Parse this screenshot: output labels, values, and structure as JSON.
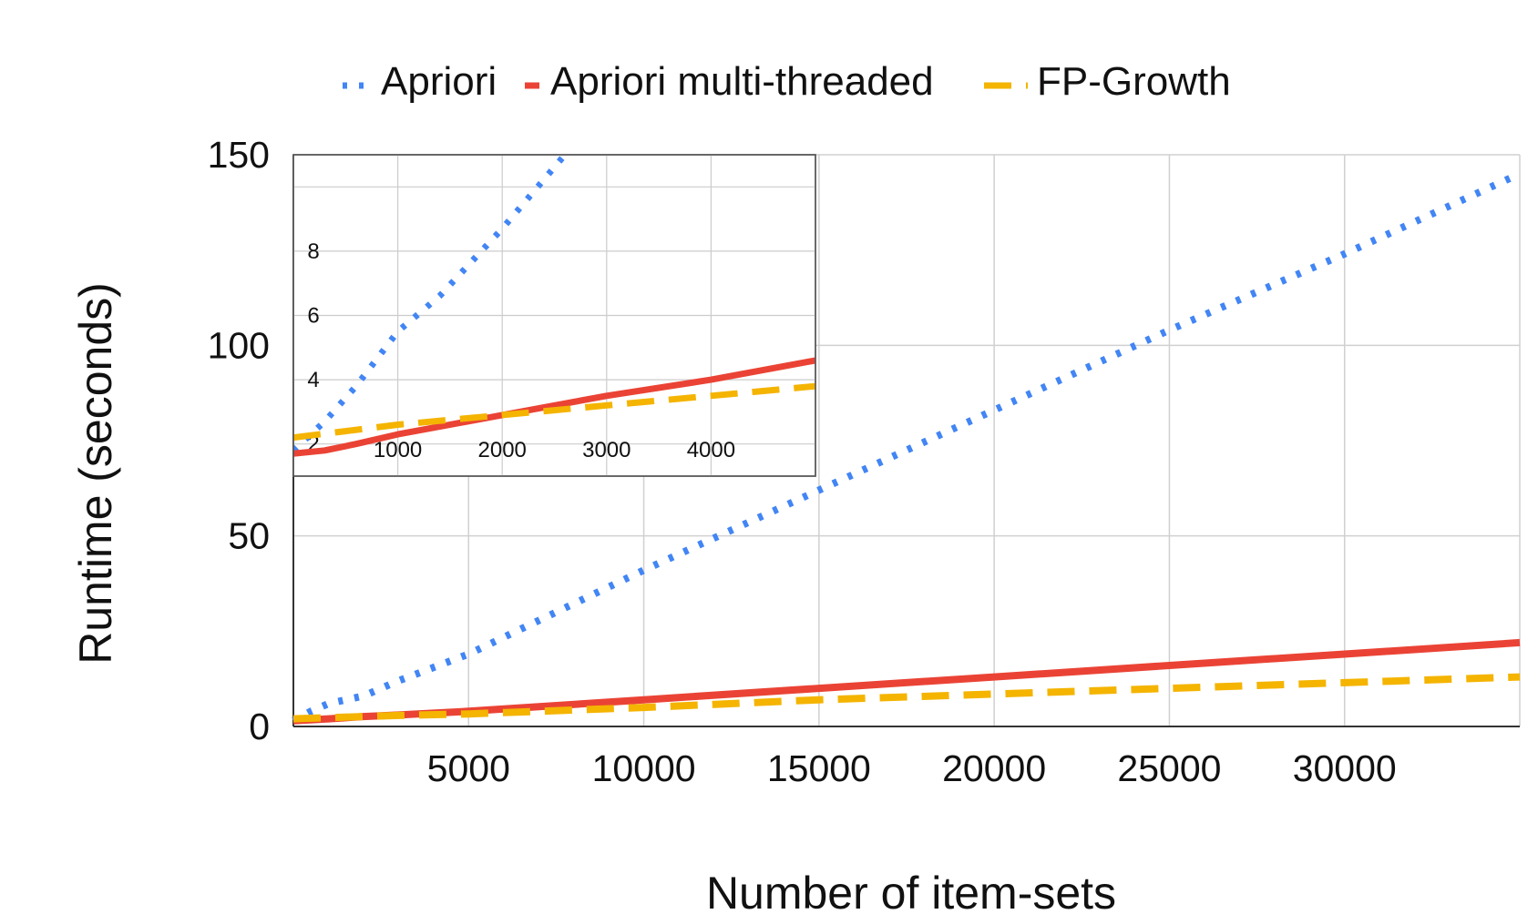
{
  "chart_data": [
    {
      "type": "line",
      "xlabel": "Number of item-sets",
      "ylabel": "Runtime (seconds)",
      "xlim": [
        0,
        35000
      ],
      "ylim": [
        0,
        150
      ],
      "xticks": [
        "5000",
        "10000",
        "15000",
        "20000",
        "25000",
        "30000"
      ],
      "yticks": [
        "0",
        "50",
        "100",
        "150"
      ],
      "grid": true,
      "legend_position": "top",
      "series": [
        {
          "name": "Apriori",
          "color": "#4285F4",
          "style": "dotted",
          "x": [
            0,
            500,
            1000,
            2000,
            3000,
            5000,
            10000,
            15000,
            20000,
            25000,
            30000,
            35000
          ],
          "y": [
            1.5,
            4,
            6,
            8,
            12,
            19,
            41,
            62,
            83,
            104,
            124,
            145
          ]
        },
        {
          "name": "Apriori multi-threaded",
          "color": "#EA4335",
          "style": "solid",
          "x": [
            0,
            1000,
            2000,
            3000,
            5000,
            10000,
            15000,
            20000,
            25000,
            30000,
            35000
          ],
          "y": [
            1.5,
            2,
            2.6,
            3,
            4,
            7,
            10,
            13,
            16,
            19,
            22
          ]
        },
        {
          "name": "FP-Growth",
          "color": "#F4B400",
          "style": "dashed",
          "x": [
            0,
            1000,
            2000,
            3000,
            5000,
            10000,
            15000,
            20000,
            25000,
            30000,
            35000
          ],
          "y": [
            2,
            2.3,
            2.6,
            2.9,
            3.3,
            5,
            7,
            8.5,
            10,
            11.5,
            13
          ]
        }
      ]
    },
    {
      "type": "line",
      "inset": true,
      "xlim": [
        0,
        5000
      ],
      "ylim": [
        1,
        11
      ],
      "xticks": [
        "1000",
        "2000",
        "3000",
        "4000"
      ],
      "yticks": [
        "2",
        "4",
        "6",
        "8"
      ],
      "grid": true,
      "series": [
        {
          "name": "Apriori",
          "color": "#4285F4",
          "style": "dotted",
          "x": [
            0,
            300,
            600,
            1000,
            1400,
            2000,
            2600
          ],
          "y": [
            1.8,
            2.7,
            3.8,
            5.5,
            6.6,
            8.7,
            11
          ]
        },
        {
          "name": "Apriori multi-threaded",
          "color": "#EA4335",
          "style": "solid",
          "x": [
            0,
            300,
            600,
            1000,
            2000,
            3000,
            4000,
            5000
          ],
          "y": [
            1.7,
            1.8,
            2.0,
            2.3,
            2.9,
            3.5,
            4.0,
            4.6
          ]
        },
        {
          "name": "FP-Growth",
          "color": "#F4B400",
          "style": "dashed",
          "x": [
            0,
            500,
            1000,
            2000,
            3000,
            4000,
            5000
          ],
          "y": [
            2.2,
            2.4,
            2.6,
            2.9,
            3.2,
            3.5,
            3.8
          ]
        }
      ]
    }
  ]
}
